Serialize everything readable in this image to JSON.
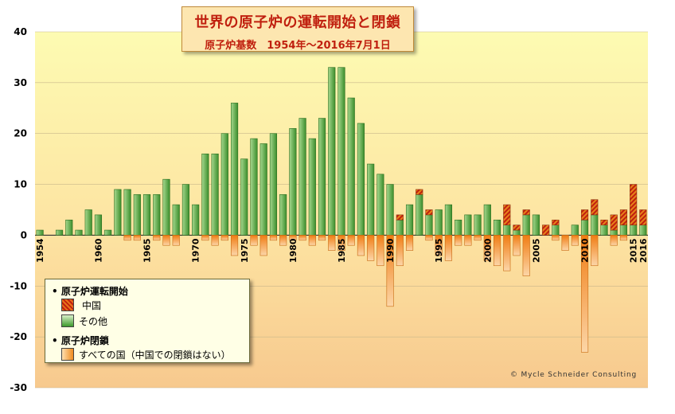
{
  "header": {
    "title": "世界の原子炉の運転開始と閉鎖",
    "subtitle": "原子炉基数　1954年～2016年7月1日"
  },
  "legend": {
    "startup_heading": "原子炉運転開始",
    "china_label": "中国",
    "other_label": "その他",
    "closure_heading": "原子炉閉鎖",
    "closure_label": "すべての国（中国での閉鎖はない）"
  },
  "credit": "© Mycle Schneider Consulting",
  "colors": {
    "startup_other": "#4ea83a",
    "startup_china": "#d8401a",
    "closure": "#f08a1e"
  },
  "chart_data": {
    "type": "bar",
    "ylim": [
      -30,
      40
    ],
    "yticks": [
      -30,
      -20,
      -10,
      0,
      10,
      20,
      30,
      40
    ],
    "xtick_labels": [
      "1954",
      "1960",
      "1965",
      "1970",
      "1975",
      "1980",
      "1985",
      "1990",
      "1995",
      "2000",
      "2005",
      "2010",
      "2015",
      "2016"
    ],
    "grid": "horizontal",
    "legend_position": "bottom-left",
    "x": [
      1954,
      1955,
      1956,
      1957,
      1958,
      1959,
      1960,
      1961,
      1962,
      1963,
      1964,
      1965,
      1966,
      1967,
      1968,
      1969,
      1970,
      1971,
      1972,
      1973,
      1974,
      1975,
      1976,
      1977,
      1978,
      1979,
      1980,
      1981,
      1982,
      1983,
      1984,
      1985,
      1986,
      1987,
      1988,
      1989,
      1990,
      1991,
      1992,
      1993,
      1994,
      1995,
      1996,
      1997,
      1998,
      1999,
      2000,
      2001,
      2002,
      2003,
      2004,
      2005,
      2006,
      2007,
      2008,
      2009,
      2010,
      2011,
      2012,
      2013,
      2014,
      2015,
      2016
    ],
    "series": [
      {
        "name": "その他",
        "values": [
          1,
          0,
          1,
          3,
          1,
          5,
          4,
          1,
          9,
          9,
          8,
          8,
          8,
          11,
          6,
          10,
          6,
          16,
          16,
          20,
          26,
          15,
          19,
          18,
          20,
          8,
          21,
          23,
          19,
          23,
          33,
          33,
          27,
          22,
          14,
          12,
          10,
          3,
          6,
          8,
          4,
          5,
          6,
          3,
          4,
          4,
          6,
          3,
          2,
          1,
          4,
          4,
          0,
          2,
          0,
          2,
          3,
          4,
          2,
          1,
          2,
          2,
          2
        ]
      },
      {
        "name": "中国",
        "values": [
          0,
          0,
          0,
          0,
          0,
          0,
          0,
          0,
          0,
          0,
          0,
          0,
          0,
          0,
          0,
          0,
          0,
          0,
          0,
          0,
          0,
          0,
          0,
          0,
          0,
          0,
          0,
          0,
          0,
          0,
          0,
          0,
          0,
          0,
          0,
          0,
          0,
          1,
          0,
          1,
          1,
          0,
          0,
          0,
          0,
          0,
          0,
          0,
          4,
          1,
          1,
          0,
          2,
          1,
          0,
          0,
          2,
          3,
          1,
          3,
          3,
          8,
          3
        ]
      },
      {
        "name": "すべての国（中国での閉鎖はない）",
        "values": [
          0,
          0,
          0,
          0,
          0,
          0,
          0,
          0,
          0,
          -1,
          -1,
          0,
          -1,
          -2,
          -2,
          0,
          0,
          -1,
          -2,
          -1,
          -4,
          0,
          -2,
          -4,
          -1,
          -2,
          -1,
          -1,
          -2,
          -1,
          -3,
          -3,
          -2,
          -4,
          -5,
          -6,
          -14,
          -6,
          -3,
          0,
          -1,
          -4,
          -5,
          -2,
          -2,
          -1,
          -5,
          -6,
          -7,
          -4,
          -8,
          0,
          0,
          -1,
          -3,
          -2,
          -23,
          -6,
          0,
          -2,
          -1,
          0,
          0
        ]
      }
    ]
  }
}
